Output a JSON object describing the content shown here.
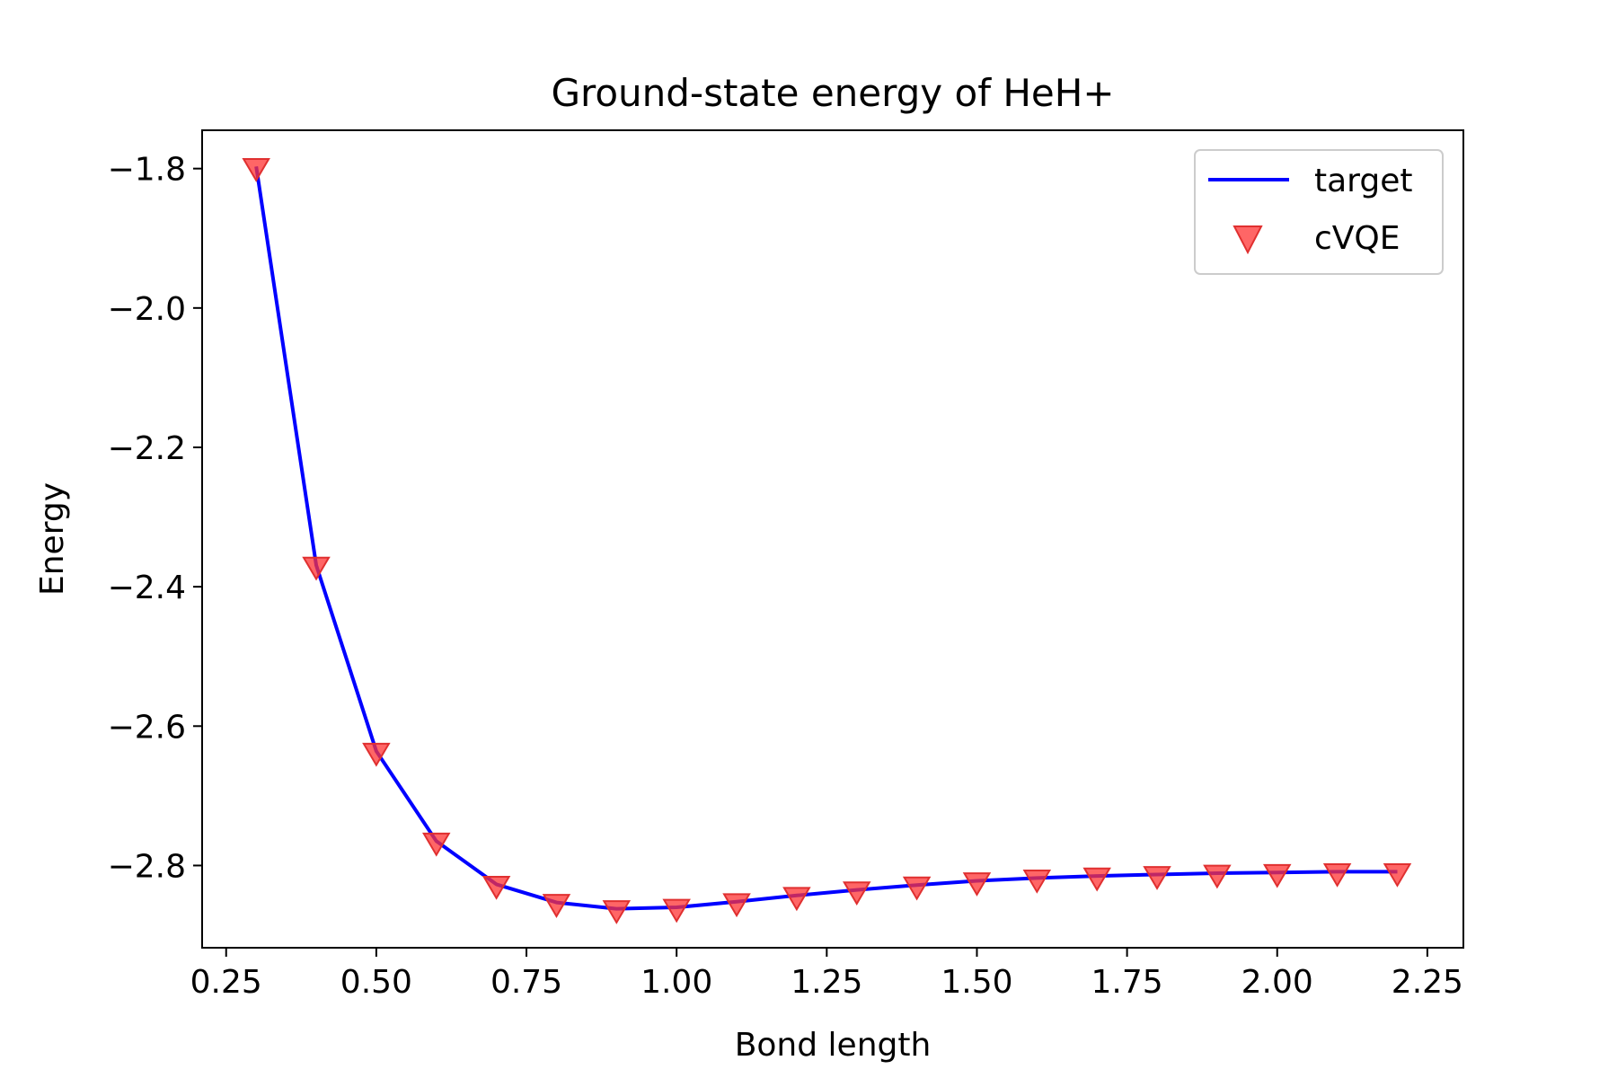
{
  "chart_data": {
    "type": "line",
    "title": "Ground-state energy of HeH+",
    "xlabel": "Bond length",
    "ylabel": "Energy",
    "xlim": [
      0.21,
      2.31
    ],
    "ylim": [
      -2.918,
      -1.745
    ],
    "xticks": [
      0.25,
      0.5,
      0.75,
      1.0,
      1.25,
      1.5,
      1.75,
      2.0,
      2.25
    ],
    "xtick_labels": [
      "0.25",
      "0.50",
      "0.75",
      "1.00",
      "1.25",
      "1.50",
      "1.75",
      "2.00",
      "2.25"
    ],
    "yticks": [
      -1.8,
      -2.0,
      -2.2,
      -2.4,
      -2.6,
      -2.8
    ],
    "ytick_labels": [
      "−1.8",
      "−2.0",
      "−2.2",
      "−2.4",
      "−2.6",
      "−2.8"
    ],
    "grid": false,
    "legend_position": "top-right",
    "x": [
      0.3,
      0.4,
      0.5,
      0.6,
      0.7,
      0.8,
      0.9,
      1.0,
      1.1,
      1.2,
      1.3,
      1.4,
      1.5,
      1.6,
      1.7,
      1.8,
      1.9,
      2.0,
      2.1,
      2.2
    ],
    "series": [
      {
        "name": "target",
        "style": "line",
        "color": "#0000ff",
        "values": [
          -1.797,
          -2.369,
          -2.636,
          -2.765,
          -2.827,
          -2.853,
          -2.862,
          -2.86,
          -2.852,
          -2.843,
          -2.835,
          -2.828,
          -2.822,
          -2.818,
          -2.815,
          -2.813,
          -2.811,
          -2.81,
          -2.809,
          -2.809
        ]
      },
      {
        "name": "cVQE",
        "style": "marker",
        "marker": "triangle-down",
        "color": "#ff3333",
        "values": [
          -1.797,
          -2.369,
          -2.636,
          -2.765,
          -2.827,
          -2.853,
          -2.862,
          -2.86,
          -2.852,
          -2.843,
          -2.835,
          -2.828,
          -2.822,
          -2.818,
          -2.815,
          -2.813,
          -2.811,
          -2.81,
          -2.809,
          -2.809
        ]
      }
    ]
  }
}
